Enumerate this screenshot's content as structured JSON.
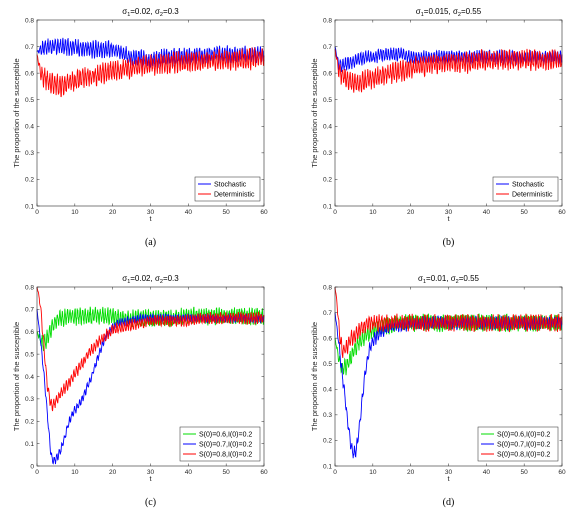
{
  "chart_data": [
    {
      "type": "line",
      "panel": "a",
      "caption": "(a)",
      "title_parts": {
        "s1_label": "σ",
        "s1_sub": "1",
        "s1_value": "=0.02,",
        "s2_label": "σ",
        "s2_sub": "2",
        "s2_value": "=0.3"
      },
      "xlabel": "t",
      "ylabel": "The proportion of the susceptible",
      "xlim": [
        0,
        60
      ],
      "ylim": [
        0.1,
        0.8
      ],
      "xticks": [
        "0",
        "10",
        "20",
        "30",
        "40",
        "50",
        "60"
      ],
      "yticks": [
        "0.1",
        "0.2",
        "0.3",
        "0.4",
        "0.5",
        "0.6",
        "0.7",
        "0.8"
      ],
      "legend_position": "bottom-right",
      "series": [
        {
          "name": "Stochastic",
          "color": "#0000ff",
          "x": [
            0,
            1,
            2,
            4,
            6,
            8,
            10,
            12,
            15,
            18,
            20,
            22,
            25,
            30,
            35,
            40,
            45,
            50,
            55,
            60
          ],
          "y": [
            0.68,
            0.69,
            0.7,
            0.7,
            0.7,
            0.7,
            0.7,
            0.69,
            0.69,
            0.69,
            0.69,
            0.68,
            0.66,
            0.65,
            0.66,
            0.66,
            0.67,
            0.67,
            0.67,
            0.67
          ],
          "noise": 0.025
        },
        {
          "name": "Deterministic",
          "color": "#ff0000",
          "x": [
            0,
            1,
            2,
            3,
            4,
            5,
            6,
            8,
            10,
            12,
            15,
            18,
            20,
            25,
            30,
            35,
            40,
            45,
            50,
            55,
            60
          ],
          "y": [
            0.67,
            0.6,
            0.58,
            0.57,
            0.56,
            0.56,
            0.55,
            0.56,
            0.57,
            0.58,
            0.59,
            0.6,
            0.61,
            0.62,
            0.63,
            0.64,
            0.64,
            0.65,
            0.65,
            0.65,
            0.66
          ],
          "noise": 0.03
        }
      ]
    },
    {
      "type": "line",
      "panel": "b",
      "caption": "(b)",
      "title_parts": {
        "s1_label": "σ",
        "s1_sub": "1",
        "s1_value": "=0.015,",
        "s2_label": "σ",
        "s2_sub": "2",
        "s2_value": "=0.55"
      },
      "xlabel": "t",
      "ylabel": "The proportion of the susceptible",
      "xlim": [
        0,
        60
      ],
      "ylim": [
        0.1,
        0.8
      ],
      "xticks": [
        "0",
        "10",
        "20",
        "30",
        "40",
        "50",
        "60"
      ],
      "yticks": [
        "0.1",
        "0.2",
        "0.3",
        "0.4",
        "0.5",
        "0.6",
        "0.7",
        "0.8"
      ],
      "legend_position": "bottom-right",
      "series": [
        {
          "name": "Stochastic",
          "color": "#0000ff",
          "x": [
            0,
            1,
            2,
            4,
            6,
            8,
            10,
            12,
            15,
            18,
            20,
            25,
            30,
            35,
            40,
            45,
            50,
            55,
            60
          ],
          "y": [
            0.7,
            0.63,
            0.63,
            0.64,
            0.65,
            0.66,
            0.66,
            0.67,
            0.67,
            0.67,
            0.66,
            0.66,
            0.66,
            0.66,
            0.66,
            0.66,
            0.66,
            0.66,
            0.66
          ],
          "noise": 0.02
        },
        {
          "name": "Deterministic",
          "color": "#ff0000",
          "x": [
            0,
            1,
            2,
            3,
            4,
            5,
            6,
            8,
            10,
            12,
            15,
            18,
            20,
            25,
            30,
            35,
            40,
            45,
            50,
            55,
            60
          ],
          "y": [
            0.69,
            0.61,
            0.59,
            0.58,
            0.57,
            0.56,
            0.56,
            0.57,
            0.58,
            0.59,
            0.6,
            0.61,
            0.62,
            0.63,
            0.64,
            0.64,
            0.65,
            0.65,
            0.65,
            0.65,
            0.65
          ],
          "noise": 0.03
        }
      ]
    },
    {
      "type": "line",
      "panel": "c",
      "caption": "(c)",
      "title_parts": {
        "s1_label": "σ",
        "s1_sub": "1",
        "s1_value": "=0.02,",
        "s2_label": "σ",
        "s2_sub": "2",
        "s2_value": "=0.3"
      },
      "xlabel": "t",
      "ylabel": "The proportion of the susceptible",
      "xlim": [
        0,
        60
      ],
      "ylim": [
        0.0,
        0.8
      ],
      "xticks": [
        "0",
        "10",
        "20",
        "30",
        "40",
        "50",
        "60"
      ],
      "yticks": [
        "0",
        "0.1",
        "0.2",
        "0.3",
        "0.4",
        "0.5",
        "0.6",
        "0.7",
        "0.8"
      ],
      "legend_position": "bottom-right",
      "series": [
        {
          "name": "S(0)=0.6,I(0)=0.2",
          "color": "#00dd00",
          "x": [
            0,
            1,
            2,
            3,
            4,
            5,
            6,
            8,
            10,
            12,
            15,
            18,
            20,
            22,
            25,
            30,
            35,
            40,
            45,
            50,
            55,
            60
          ],
          "y": [
            0.6,
            0.56,
            0.55,
            0.58,
            0.62,
            0.65,
            0.66,
            0.67,
            0.67,
            0.67,
            0.67,
            0.67,
            0.67,
            0.66,
            0.66,
            0.66,
            0.66,
            0.67,
            0.67,
            0.67,
            0.67,
            0.67
          ],
          "noise": 0.03
        },
        {
          "name": "S(0)=0.7,I(0)=0.2",
          "color": "#0000ff",
          "x": [
            0,
            1,
            2,
            3,
            3.5,
            4,
            4.5,
            5,
            6,
            7,
            8,
            9,
            10,
            11,
            12,
            13,
            14,
            15,
            16,
            17,
            18,
            20,
            22,
            25,
            28,
            30,
            35,
            40,
            45,
            50,
            55,
            60
          ],
          "y": [
            0.7,
            0.55,
            0.38,
            0.18,
            0.08,
            0.03,
            0.02,
            0.03,
            0.06,
            0.11,
            0.17,
            0.22,
            0.25,
            0.27,
            0.3,
            0.34,
            0.38,
            0.43,
            0.48,
            0.53,
            0.57,
            0.62,
            0.64,
            0.65,
            0.66,
            0.66,
            0.66,
            0.66,
            0.66,
            0.66,
            0.66,
            0.66
          ],
          "noise": 0.015
        },
        {
          "name": "S(0)=0.8,I(0)=0.2",
          "color": "#ff0000",
          "x": [
            0,
            0.5,
            1,
            1.5,
            2,
            2.5,
            3,
            3.5,
            4,
            5,
            6,
            8,
            10,
            12,
            14,
            16,
            18,
            20,
            25,
            30,
            35,
            40,
            45,
            50,
            55,
            60
          ],
          "y": [
            0.8,
            0.76,
            0.7,
            0.6,
            0.5,
            0.4,
            0.33,
            0.29,
            0.27,
            0.29,
            0.32,
            0.36,
            0.41,
            0.46,
            0.51,
            0.55,
            0.58,
            0.61,
            0.63,
            0.65,
            0.65,
            0.65,
            0.66,
            0.66,
            0.66,
            0.66
          ],
          "noise": 0.02
        }
      ]
    },
    {
      "type": "line",
      "panel": "d",
      "caption": "(d)",
      "title_parts": {
        "s1_label": "σ",
        "s1_sub": "1",
        "s1_value": "=0.01,",
        "s2_label": "σ",
        "s2_sub": "2",
        "s2_value": "=0.55"
      },
      "xlabel": "t",
      "ylabel": "The proportion of the susceptible",
      "xlim": [
        0,
        60
      ],
      "ylim": [
        0.1,
        0.8
      ],
      "xticks": [
        "0",
        "10",
        "20",
        "30",
        "40",
        "50",
        "60"
      ],
      "yticks": [
        "0.1",
        "0.2",
        "0.3",
        "0.4",
        "0.5",
        "0.6",
        "0.7",
        "0.8"
      ],
      "legend_position": "bottom-right",
      "series": [
        {
          "name": "S(0)=0.6,I(0)=0.2",
          "color": "#00dd00",
          "x": [
            0,
            1,
            2,
            3,
            4,
            5,
            6,
            8,
            10,
            12,
            15,
            18,
            20,
            25,
            30,
            35,
            40,
            45,
            50,
            55,
            60
          ],
          "y": [
            0.6,
            0.52,
            0.48,
            0.49,
            0.52,
            0.55,
            0.58,
            0.61,
            0.63,
            0.64,
            0.65,
            0.66,
            0.66,
            0.66,
            0.66,
            0.66,
            0.66,
            0.66,
            0.66,
            0.66,
            0.66
          ],
          "noise": 0.025
        },
        {
          "name": "S(0)=0.7,I(0)=0.2",
          "color": "#0000ff",
          "x": [
            0,
            1,
            2,
            3,
            4,
            4.5,
            5,
            5.5,
            6,
            6.5,
            7,
            7.5,
            8,
            9,
            10,
            12,
            14,
            16,
            18,
            20,
            25,
            30,
            35,
            40,
            45,
            50,
            55,
            60
          ],
          "y": [
            0.7,
            0.58,
            0.45,
            0.32,
            0.2,
            0.16,
            0.15,
            0.16,
            0.2,
            0.26,
            0.33,
            0.4,
            0.47,
            0.55,
            0.59,
            0.62,
            0.64,
            0.65,
            0.65,
            0.66,
            0.66,
            0.66,
            0.66,
            0.66,
            0.66,
            0.66,
            0.66,
            0.66
          ],
          "noise": 0.02
        },
        {
          "name": "S(0)=0.8,I(0)=0.2",
          "color": "#ff0000",
          "x": [
            0,
            0.5,
            1,
            1.5,
            2,
            3,
            4,
            5,
            6,
            8,
            10,
            12,
            15,
            20,
            25,
            30,
            35,
            40,
            45,
            50,
            55,
            60
          ],
          "y": [
            0.8,
            0.74,
            0.65,
            0.58,
            0.55,
            0.56,
            0.59,
            0.61,
            0.63,
            0.65,
            0.66,
            0.66,
            0.66,
            0.66,
            0.66,
            0.66,
            0.66,
            0.66,
            0.66,
            0.66,
            0.66,
            0.66
          ],
          "noise": 0.025
        }
      ]
    }
  ]
}
